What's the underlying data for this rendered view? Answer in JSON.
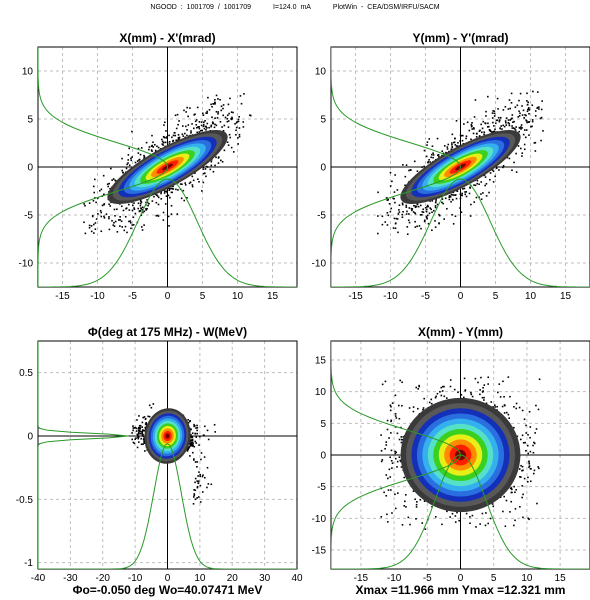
{
  "header": {
    "ngood": "NGOOD : 1001709 / 1001709",
    "current": "I=124.0 mA",
    "software": "PlotWin - CEA/DSM/IRFU/SACM"
  },
  "colors": {
    "density": [
      "#000000",
      "#3a3a3a",
      "#585858",
      "#1530b8",
      "#2a6fe0",
      "#35b0ee",
      "#55e0c8",
      "#3ad020",
      "#e8ef18",
      "#ff8c00",
      "#ff1e00",
      "#7a0000"
    ],
    "profile_line": "#2a9a2a",
    "grid": "#bfbfbf",
    "axis": "#000000"
  },
  "chart_data": [
    {
      "type": "scatter",
      "title": "X(mm) - X'(mrad)",
      "xlim": [
        -18.5,
        18.5
      ],
      "ylim": [
        -12.5,
        12.5
      ],
      "xticks": [
        -15,
        -10,
        -5,
        0,
        5,
        10,
        15
      ],
      "yticks": [
        -10,
        -5,
        0,
        5,
        10
      ],
      "grid": true,
      "footer": "",
      "distribution": {
        "center": [
          0,
          0
        ],
        "sigma_major": 4.2,
        "sigma_minor": 1.2,
        "angle_deg": 29,
        "extent_x": [
          -12,
          12
        ],
        "extent_y": [
          -7,
          8
        ]
      },
      "profile_x": {
        "peak_ratio": 0.45,
        "fwhm_approx": 10
      },
      "profile_y": {
        "peak_ratio": 0.5,
        "fwhm_approx": 6
      }
    },
    {
      "type": "scatter",
      "title": "Y(mm) - Y'(mrad)",
      "xlim": [
        -18.5,
        18.5
      ],
      "ylim": [
        -12.5,
        12.5
      ],
      "xticks": [
        -15,
        -10,
        -5,
        0,
        5,
        10,
        15
      ],
      "yticks": [
        -10,
        -5,
        0,
        5,
        10
      ],
      "grid": true,
      "footer": "",
      "distribution": {
        "center": [
          0,
          0
        ],
        "sigma_major": 4.2,
        "sigma_minor": 1.2,
        "angle_deg": 29,
        "extent_x": [
          -12,
          12
        ],
        "extent_y": [
          -7,
          8
        ]
      },
      "profile_x": {
        "peak_ratio": 0.45,
        "fwhm_approx": 10
      },
      "profile_y": {
        "peak_ratio": 0.5,
        "fwhm_approx": 6
      }
    },
    {
      "type": "scatter",
      "title": "Φ(deg at 175 MHz) - W(MeV)",
      "xlim": [
        -40,
        40
      ],
      "ylim": [
        -1.05,
        0.75
      ],
      "xticks": [
        -40,
        -30,
        -20,
        -10,
        0,
        10,
        20,
        30,
        40
      ],
      "yticks": [
        -1,
        -0.5,
        0,
        0.5
      ],
      "grid": true,
      "footer": "Φo=-0.050 deg  Wo=40.07471 MeV",
      "distribution": {
        "center": [
          0,
          0
        ],
        "sigma_major": 3.4,
        "sigma_minor": 0.05,
        "angle_deg": -8,
        "extent_x": [
          -11,
          27
        ],
        "extent_y": [
          -0.55,
          0.45
        ]
      },
      "profile_x": {
        "peak_ratio": 0.55,
        "fwhm_approx": 10
      },
      "profile_y": {
        "peak_ratio": 0.35,
        "fwhm_approx": 0.05
      }
    },
    {
      "type": "scatter",
      "title": "X(mm) - Y(mm)",
      "xlim": [
        -19.5,
        19.5
      ],
      "ylim": [
        -18,
        18
      ],
      "xticks": [
        -15,
        -10,
        -5,
        0,
        5,
        10,
        15
      ],
      "yticks": [
        -15,
        -10,
        -5,
        0,
        5,
        10,
        15
      ],
      "grid": true,
      "footer": "Xmax =11.966 mm  Ymax =12.321 mm",
      "distribution": {
        "center": [
          0,
          0
        ],
        "sigma_major": 4.1,
        "sigma_minor": 4.1,
        "angle_deg": 0,
        "extent_x": [
          -12,
          12
        ],
        "extent_y": [
          -12.3,
          12.3
        ]
      },
      "profile_x": {
        "peak_ratio": 0.5,
        "fwhm_approx": 9
      },
      "profile_y": {
        "peak_ratio": 0.5,
        "fwhm_approx": 9
      }
    }
  ]
}
